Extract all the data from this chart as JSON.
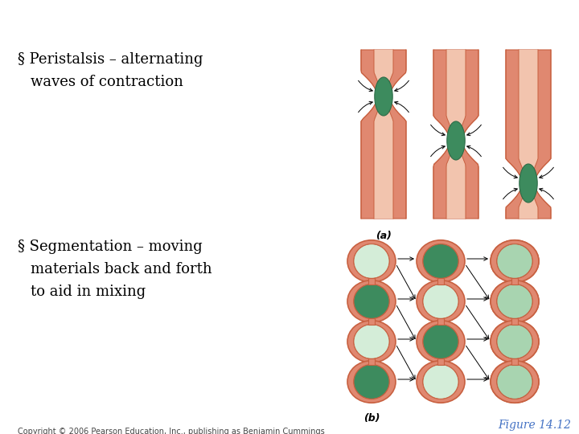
{
  "bullet1_line1": "§ Peristalsis – alternating",
  "bullet1_line2": "waves of contraction",
  "bullet2_line1": "§ Segmentation – moving",
  "bullet2_line2": "materials back and forth",
  "bullet2_line3": "to aid in mixing",
  "label_a": "(a)",
  "label_b": "(b)",
  "figure_label": "Figure 14.12",
  "copyright": "Copyright © 2006 Pearson Education, Inc., publishing as Benjamin Cummings",
  "bg_color": "#ffffff",
  "text_color": "#000000",
  "figure_label_color": "#4472c4",
  "salmon": "#E08870",
  "light_salmon": "#F2C4AE",
  "salmon_border": "#C86040",
  "green_dark": "#3D8B5E",
  "green_light": "#A8D4B0",
  "green_very_light": "#D4EDD8",
  "font_size_bullet": 13,
  "font_size_label": 9,
  "font_size_copyright": 7,
  "font_size_figure": 10
}
